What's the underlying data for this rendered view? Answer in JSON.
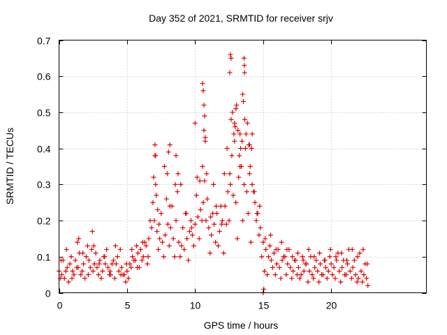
{
  "chart_data": {
    "type": "scatter",
    "title": "Day 352 of 2021, SRMTID for receiver srjv",
    "xlabel": "GPS time / hours",
    "ylabel": "SRMTID / TECUs",
    "xlim": [
      0,
      27
    ],
    "ylim": [
      0,
      0.7
    ],
    "xticks": [
      "0",
      "5",
      "10",
      "15",
      "20"
    ],
    "xtick_values": [
      0,
      5,
      10,
      15,
      20
    ],
    "yticks": [
      "0",
      "0.1",
      "0.2",
      "0.3",
      "0.4",
      "0.5",
      "0.6",
      "0.7"
    ],
    "ytick_values": [
      0,
      0.1,
      0.2,
      0.3,
      0.4,
      0.5,
      0.6,
      0.7
    ],
    "grid": true,
    "marker": "+",
    "series": [
      {
        "name": "SRMTID",
        "color": "#e00000",
        "x": [
          0.0,
          0.2,
          0.4,
          0.6,
          0.8,
          1.0,
          1.2,
          1.4,
          1.6,
          1.8,
          2.0,
          2.2,
          2.4,
          2.6,
          2.8,
          3.0,
          3.2,
          3.4,
          3.6,
          3.8,
          4.0,
          4.2,
          4.4,
          4.6,
          4.8,
          5.0,
          5.2,
          5.4,
          5.6,
          5.8,
          6.0,
          6.2,
          6.4,
          6.6,
          6.8,
          7.0,
          7.2,
          7.4,
          7.6,
          7.8,
          8.0,
          8.2,
          8.4,
          8.6,
          8.8,
          9.0,
          9.2,
          9.4,
          9.6,
          9.8,
          10.0,
          10.2,
          10.4,
          10.6,
          10.8,
          11.0,
          11.2,
          11.4,
          11.6,
          11.8,
          12.0,
          12.2,
          12.4,
          12.6,
          12.8,
          13.0,
          13.2,
          13.4,
          13.6,
          13.8,
          14.0,
          14.2,
          14.4,
          14.6,
          14.8,
          15.0,
          15.2,
          15.4,
          15.6,
          15.8,
          16.0,
          16.2,
          16.4,
          16.6,
          16.8,
          17.0,
          17.2,
          17.4,
          17.6,
          17.8,
          18.0,
          18.2,
          18.4,
          18.6,
          18.8,
          19.0,
          19.2,
          19.4,
          19.6,
          19.8,
          20.0,
          20.2,
          20.4,
          20.6,
          20.8,
          21.0,
          21.2,
          21.4,
          21.6,
          21.8,
          22.0,
          22.2,
          22.4,
          22.6,
          0.1,
          0.3,
          0.5,
          0.7,
          0.9,
          1.1,
          1.3,
          1.5,
          1.7,
          1.9,
          2.1,
          2.3,
          2.5,
          2.7,
          2.9,
          3.1,
          3.3,
          3.5,
          3.7,
          3.9,
          4.1,
          4.3,
          4.5,
          4.7,
          4.9,
          5.1,
          5.3,
          5.5,
          5.7,
          5.9,
          6.1,
          6.3,
          6.5,
          6.7,
          6.9,
          7.1,
          7.3,
          7.5,
          7.7,
          7.9,
          8.1,
          8.3,
          8.5,
          8.7,
          8.9,
          9.1,
          9.3,
          9.5,
          9.7,
          9.9,
          10.1,
          10.3,
          10.5,
          10.7,
          10.9,
          11.1,
          11.3,
          11.5,
          11.7,
          11.9,
          12.1,
          12.3,
          12.5,
          12.7,
          12.9,
          13.1,
          13.3,
          13.5,
          13.7,
          13.9,
          14.1,
          14.3,
          14.5,
          14.7,
          14.9,
          15.1,
          15.3,
          15.5,
          15.7,
          15.9,
          16.1,
          16.3,
          16.5,
          16.7,
          16.9,
          17.1,
          17.3,
          17.5,
          17.7,
          17.9,
          18.1,
          18.3,
          18.5,
          18.7,
          18.9,
          19.1,
          19.3,
          19.5,
          19.7,
          19.9,
          20.1,
          20.3,
          20.5,
          20.7,
          20.9,
          21.1,
          21.3,
          21.5,
          21.7,
          21.9,
          22.1,
          22.3,
          22.5,
          22.7,
          0.15,
          0.55,
          0.95,
          1.35,
          1.75,
          2.15,
          2.55,
          2.95,
          3.35,
          3.75,
          4.15,
          4.55,
          4.95,
          5.35,
          5.75,
          6.15,
          6.55,
          6.95,
          7.05,
          7.15,
          7.25,
          7.35,
          7.75,
          7.95,
          8.15,
          8.55,
          8.75,
          8.95,
          9.35,
          9.75,
          10.15,
          10.35,
          10.55,
          10.65,
          10.75,
          10.85,
          11.15,
          11.35,
          11.55,
          11.95,
          12.15,
          12.35,
          12.55,
          12.65,
          12.75,
          12.85,
          12.95,
          13.05,
          13.15,
          13.25,
          13.35,
          13.45,
          13.55,
          13.65,
          13.75,
          13.85,
          13.95,
          14.05,
          14.15,
          14.35,
          14.55,
          14.75,
          15.15,
          15.55,
          15.95,
          16.35,
          16.75,
          17.15,
          17.55,
          17.95,
          18.35,
          18.75,
          19.15,
          19.55,
          19.95,
          20.35,
          20.75,
          21.15,
          21.55,
          21.95,
          22.35,
          22.65,
          1.45,
          2.45,
          7.05,
          7.1,
          8.05,
          8.15,
          8.6,
          10.0,
          10.55,
          10.6,
          10.65,
          10.7,
          10.75,
          12.55,
          12.6,
          12.65,
          13.6,
          13.62,
          13.64,
          12.9,
          13.0,
          13.3,
          13.5,
          14.2,
          14.0,
          15.0,
          15.05
        ],
        "y": [
          0.06,
          0.05,
          0.04,
          0.07,
          0.08,
          0.06,
          0.09,
          0.07,
          0.05,
          0.08,
          0.1,
          0.09,
          0.12,
          0.08,
          0.07,
          0.09,
          0.06,
          0.08,
          0.07,
          0.05,
          0.09,
          0.08,
          0.06,
          0.07,
          0.05,
          0.06,
          0.08,
          0.1,
          0.09,
          0.11,
          0.12,
          0.1,
          0.13,
          0.15,
          0.18,
          0.2,
          0.17,
          0.15,
          0.14,
          0.16,
          0.19,
          0.18,
          0.15,
          0.2,
          0.14,
          0.13,
          0.12,
          0.15,
          0.17,
          0.16,
          0.19,
          0.21,
          0.23,
          0.25,
          0.2,
          0.18,
          0.16,
          0.19,
          0.22,
          0.17,
          0.2,
          0.24,
          0.28,
          0.3,
          0.27,
          0.25,
          0.32,
          0.35,
          0.3,
          0.28,
          0.33,
          0.3,
          0.25,
          0.22,
          0.18,
          0.14,
          0.12,
          0.1,
          0.09,
          0.11,
          0.08,
          0.07,
          0.09,
          0.1,
          0.08,
          0.07,
          0.06,
          0.09,
          0.07,
          0.05,
          0.06,
          0.08,
          0.06,
          0.05,
          0.07,
          0.06,
          0.08,
          0.05,
          0.07,
          0.06,
          0.08,
          0.07,
          0.09,
          0.06,
          0.07,
          0.05,
          0.08,
          0.06,
          0.07,
          0.05,
          0.04,
          0.06,
          0.05,
          0.04,
          0.04,
          0.09,
          0.06,
          0.03,
          0.1,
          0.05,
          0.07,
          0.11,
          0.06,
          0.04,
          0.13,
          0.07,
          0.06,
          0.11,
          0.05,
          0.04,
          0.1,
          0.12,
          0.05,
          0.08,
          0.04,
          0.1,
          0.12,
          0.05,
          0.03,
          0.04,
          0.07,
          0.09,
          0.13,
          0.07,
          0.09,
          0.14,
          0.08,
          0.2,
          0.25,
          0.3,
          0.12,
          0.22,
          0.1,
          0.26,
          0.13,
          0.24,
          0.1,
          0.28,
          0.1,
          0.18,
          0.22,
          0.09,
          0.2,
          0.13,
          0.27,
          0.15,
          0.2,
          0.31,
          0.26,
          0.11,
          0.22,
          0.14,
          0.13,
          0.24,
          0.11,
          0.19,
          0.2,
          0.38,
          0.42,
          0.15,
          0.35,
          0.2,
          0.4,
          0.22,
          0.14,
          0.28,
          0.2,
          0.16,
          0.1,
          0.06,
          0.05,
          0.13,
          0.07,
          0.05,
          0.12,
          0.04,
          0.1,
          0.05,
          0.12,
          0.04,
          0.09,
          0.05,
          0.04,
          0.1,
          0.08,
          0.03,
          0.1,
          0.04,
          0.09,
          0.03,
          0.05,
          0.09,
          0.04,
          0.1,
          0.05,
          0.04,
          0.11,
          0.03,
          0.09,
          0.05,
          0.12,
          0.04,
          0.09,
          0.03,
          0.11,
          0.03,
          0.08,
          0.02,
          0.09,
          0.12,
          0.04,
          0.14,
          0.11,
          0.05,
          0.13,
          0.08,
          0.1,
          0.06,
          0.13,
          0.05,
          0.08,
          0.12,
          0.07,
          0.14,
          0.1,
          0.32,
          0.38,
          0.27,
          0.23,
          0.19,
          0.35,
          0.33,
          0.24,
          0.3,
          0.33,
          0.3,
          0.22,
          0.18,
          0.32,
          0.31,
          0.35,
          0.45,
          0.42,
          0.33,
          0.21,
          0.3,
          0.24,
          0.19,
          0.33,
          0.4,
          0.33,
          0.48,
          0.5,
          0.44,
          0.46,
          0.52,
          0.45,
          0.38,
          0.4,
          0.42,
          0.53,
          0.48,
          0.44,
          0.47,
          0.41,
          0.35,
          0.4,
          0.28,
          0.22,
          0.24,
          0.15,
          0.16,
          0.12,
          0.14,
          0.12,
          0.1,
          0.11,
          0.09,
          0.12,
          0.1,
          0.11,
          0.09,
          0.12,
          0.1,
          0.11,
          0.09,
          0.12,
          0.1,
          0.12,
          0.08,
          0.15,
          0.17,
          0.41,
          0.38,
          0.39,
          0.41,
          0.38,
          0.47,
          0.58,
          0.56,
          0.52,
          0.49,
          0.43,
          0.61,
          0.66,
          0.65,
          0.65,
          0.63,
          0.61,
          0.47,
          0.51,
          0.44,
          0.55,
          0.44,
          0.41,
          0.0,
          0.01
        ]
      }
    ]
  }
}
